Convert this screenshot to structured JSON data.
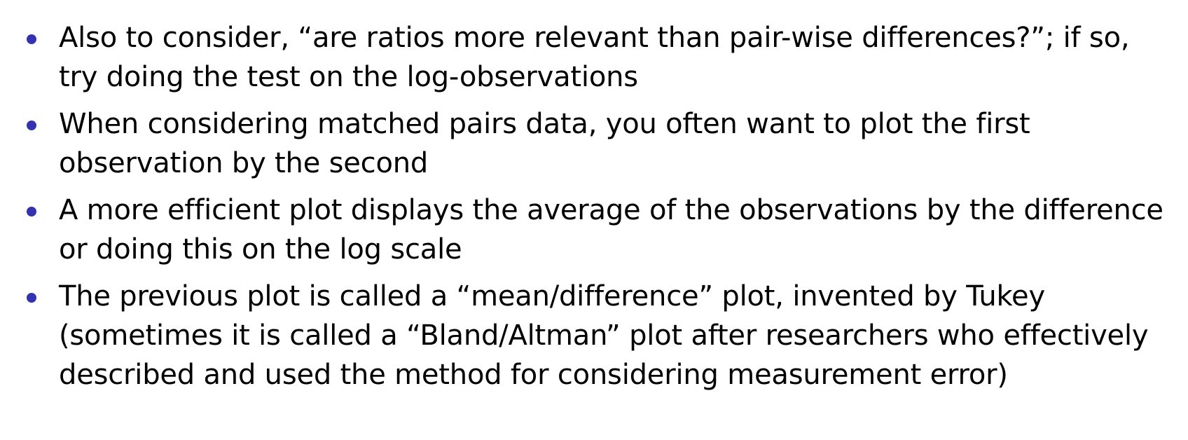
{
  "slide": {
    "bullets": [
      {
        "lines": [
          "Also to consider, “are ratios more relevant than pair-wise differences?”; if so,",
          "try doing the test on the log-observations"
        ]
      },
      {
        "lines": [
          "When considering matched pairs data, you often want to plot the first",
          "observation by the second"
        ]
      },
      {
        "lines": [
          "A more efficient plot displays the average of the observations by the difference",
          "or doing this on the log scale"
        ]
      },
      {
        "lines": [
          "The previous plot is called a “mean/difference” plot, invented by Tukey",
          "(sometimes it is called a “Bland/Altman” plot after researchers who effectively",
          "described and used the method for considering measurement error)"
        ]
      }
    ],
    "colors": {
      "bullet": "#3333b2",
      "text": "#000000",
      "background": "#ffffff"
    }
  }
}
